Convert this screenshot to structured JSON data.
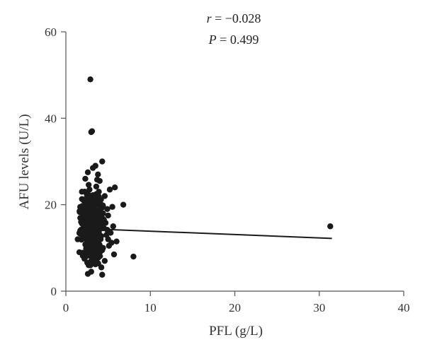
{
  "chart_data": {
    "type": "scatter",
    "title": "",
    "xlabel": "PFL (g/L)",
    "ylabel": "AFU levels (U/L)",
    "xlim": [
      0,
      40
    ],
    "ylim": [
      0,
      60
    ],
    "xticks": [
      0,
      10,
      20,
      30,
      40
    ],
    "yticks": [
      0,
      20,
      40,
      60
    ],
    "grid": false,
    "annotations": {
      "r_symbol": "r",
      "r_text": " = −0.028",
      "p_symbol": "P",
      "p_text": " = 0.499"
    },
    "regression_line": {
      "x": [
        2.0,
        31.5
      ],
      "y": [
        14.5,
        12.2
      ]
    },
    "point_color": "#1a1a1a",
    "points": [
      [
        2.9,
        49.0
      ],
      [
        3.1,
        37.0
      ],
      [
        3.0,
        36.8
      ],
      [
        4.3,
        30.0
      ],
      [
        3.5,
        29.0
      ],
      [
        3.2,
        28.5
      ],
      [
        2.6,
        27.5
      ],
      [
        3.8,
        27.0
      ],
      [
        2.3,
        26.0
      ],
      [
        4.0,
        25.5
      ],
      [
        5.8,
        24.0
      ],
      [
        3.6,
        24.2
      ],
      [
        2.8,
        23.5
      ],
      [
        1.9,
        23.0
      ],
      [
        5.2,
        23.5
      ],
      [
        4.6,
        22.0
      ],
      [
        2.1,
        21.0
      ],
      [
        3.3,
        21.5
      ],
      [
        6.8,
        20.0
      ],
      [
        5.5,
        19.5
      ],
      [
        4.9,
        19.0
      ],
      [
        2.5,
        19.8
      ],
      [
        3.0,
        18.8
      ],
      [
        3.9,
        18.5
      ],
      [
        2.2,
        18.0
      ],
      [
        5.0,
        17.5
      ],
      [
        3.4,
        17.2
      ],
      [
        2.7,
        17.0
      ],
      [
        4.5,
        16.5
      ],
      [
        1.8,
        16.0
      ],
      [
        3.1,
        16.2
      ],
      [
        2.4,
        15.5
      ],
      [
        5.6,
        15.0
      ],
      [
        3.7,
        15.3
      ],
      [
        2.9,
        14.8
      ],
      [
        4.2,
        14.5
      ],
      [
        1.7,
        14.0
      ],
      [
        3.5,
        14.2
      ],
      [
        2.6,
        13.8
      ],
      [
        5.3,
        13.5
      ],
      [
        4.8,
        13.0
      ],
      [
        2.0,
        12.8
      ],
      [
        3.2,
        12.5
      ],
      [
        1.4,
        12.0
      ],
      [
        4.0,
        12.2
      ],
      [
        2.8,
        11.8
      ],
      [
        6.0,
        11.5
      ],
      [
        3.6,
        11.0
      ],
      [
        2.3,
        10.8
      ],
      [
        5.1,
        10.5
      ],
      [
        4.4,
        10.0
      ],
      [
        1.6,
        9.0
      ],
      [
        3.0,
        9.5
      ],
      [
        2.5,
        9.0
      ],
      [
        5.7,
        8.5
      ],
      [
        3.9,
        8.2
      ],
      [
        8.0,
        8.0
      ],
      [
        2.2,
        7.5
      ],
      [
        4.6,
        7.0
      ],
      [
        3.3,
        6.8
      ],
      [
        2.7,
        6.0
      ],
      [
        4.2,
        5.5
      ],
      [
        3.0,
        4.5
      ],
      [
        2.6,
        4.0
      ],
      [
        4.3,
        3.8
      ],
      [
        3.5,
        6.2
      ],
      [
        2.0,
        8.2
      ],
      [
        4.1,
        9.2
      ],
      [
        5.4,
        11.2
      ],
      [
        3.8,
        13.2
      ],
      [
        2.1,
        14.6
      ],
      [
        4.7,
        15.8
      ],
      [
        3.4,
        16.8
      ],
      [
        2.4,
        18.2
      ],
      [
        4.1,
        20.2
      ],
      [
        3.2,
        22.2
      ],
      [
        2.7,
        24.6
      ],
      [
        3.7,
        25.8
      ],
      [
        4.4,
        18.0
      ],
      [
        5.0,
        12.0
      ],
      [
        2.9,
        10.2
      ],
      [
        3.6,
        7.6
      ],
      [
        2.3,
        13.2
      ],
      [
        4.9,
        14.2
      ],
      [
        3.1,
        19.2
      ],
      [
        2.5,
        21.8
      ],
      [
        3.9,
        23.0
      ],
      [
        31.3,
        15.0
      ]
    ],
    "cluster": {
      "x_range": [
        1.6,
        5.0
      ],
      "y_range": [
        6.0,
        26.0
      ],
      "count": 360
    }
  }
}
